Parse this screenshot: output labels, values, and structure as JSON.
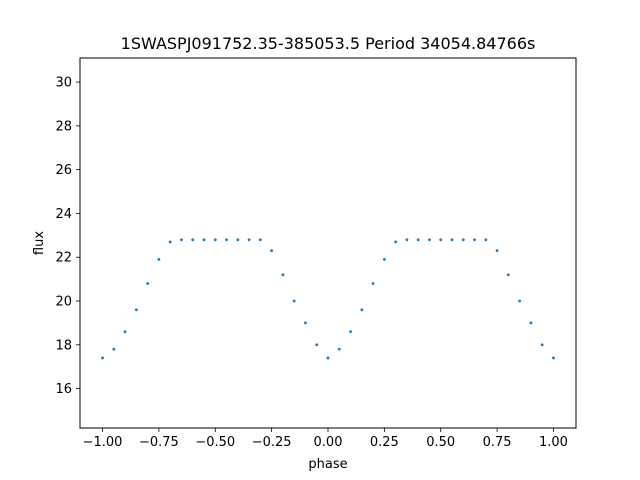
{
  "chart_data": {
    "type": "scatter",
    "title": "1SWASPJ091752.35-385053.5 Period 34054.84766s",
    "xlabel": "phase",
    "ylabel": "flux",
    "xlim": [
      -1.1,
      1.1
    ],
    "ylim": [
      14.2,
      31.1
    ],
    "xticks": [
      -1.0,
      -0.75,
      -0.5,
      -0.25,
      0.0,
      0.25,
      0.5,
      0.75,
      1.0
    ],
    "xtick_labels": [
      "−1.00",
      "−0.75",
      "−0.50",
      "−0.25",
      "0.00",
      "0.25",
      "0.50",
      "0.75",
      "1.00"
    ],
    "yticks": [
      16,
      18,
      20,
      22,
      24,
      26,
      28,
      30
    ],
    "ytick_labels": [
      "16",
      "18",
      "20",
      "22",
      "24",
      "26",
      "28",
      "30"
    ],
    "grid": false,
    "marker_color": "#1f77b4",
    "series": [
      {
        "x": [
          -1.0,
          -0.95,
          -0.9,
          -0.85,
          -0.8,
          -0.75,
          -0.7,
          -0.65,
          -0.6,
          -0.55,
          -0.5,
          -0.45,
          -0.4,
          -0.35,
          -0.3,
          -0.25,
          -0.2,
          -0.15,
          -0.1,
          -0.05,
          0.0,
          0.05,
          0.1,
          0.15,
          0.2,
          0.25,
          0.3,
          0.35,
          0.4,
          0.45,
          0.5,
          0.55,
          0.6,
          0.65,
          0.7,
          0.75,
          0.8,
          0.85,
          0.9,
          0.95,
          1.0
        ],
        "y": [
          17.4,
          17.8,
          18.6,
          19.6,
          20.8,
          21.9,
          22.7,
          22.8,
          22.8,
          22.8,
          22.8,
          22.8,
          22.8,
          22.8,
          22.8,
          22.3,
          21.2,
          20.0,
          19.0,
          18.0,
          17.4,
          17.8,
          18.6,
          19.6,
          20.8,
          21.9,
          22.7,
          22.8,
          22.8,
          22.8,
          22.8,
          22.8,
          22.8,
          22.8,
          22.8,
          22.3,
          21.2,
          20.0,
          19.0,
          18.0,
          17.4
        ]
      }
    ]
  }
}
